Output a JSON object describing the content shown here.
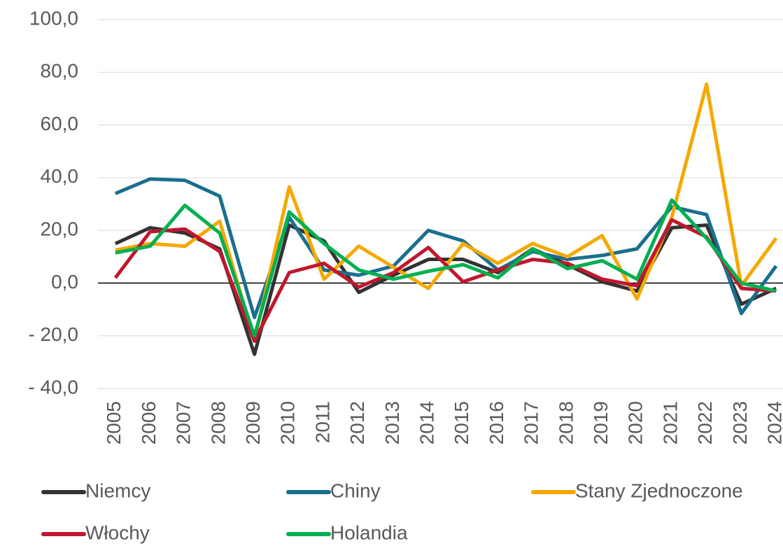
{
  "chart_data": {
    "type": "line",
    "categories": [
      "2005",
      "2006",
      "2007",
      "2008",
      "2009",
      "2010",
      "2011",
      "2012",
      "2013",
      "2014",
      "2015",
      "2016",
      "2017",
      "2018",
      "2019",
      "2020",
      "2021",
      "2022",
      "2023",
      "2024"
    ],
    "series": [
      {
        "name": "Niemcy",
        "color": "#333333",
        "values": [
          15,
          21,
          19,
          13,
          -27,
          22,
          16,
          -3.5,
          3,
          9,
          9,
          4,
          13,
          7,
          0.5,
          -3,
          21,
          22,
          -8,
          -2
        ]
      },
      {
        "name": "Chiny",
        "color": "#1a6e8e",
        "values": [
          34,
          39.5,
          39,
          33,
          -13,
          25,
          5,
          3,
          6.5,
          20,
          16,
          5,
          12,
          9,
          10.5,
          13,
          29,
          26,
          -11.5,
          6.5
        ]
      },
      {
        "name": "Stany Zjednoczone",
        "color": "#f5a800",
        "values": [
          12.5,
          15,
          14,
          23.5,
          -22,
          36.5,
          1.5,
          14,
          6,
          -2,
          15,
          7.5,
          15,
          10,
          18,
          -6,
          25,
          75.5,
          -1,
          17
        ]
      },
      {
        "name": "Włochy",
        "color": "#c0172e",
        "values": [
          2,
          19.5,
          20.5,
          12,
          -22,
          4,
          7.5,
          -1.5,
          4,
          13.5,
          0.5,
          5,
          9,
          7.5,
          1.5,
          -1,
          24,
          17.5,
          -2,
          -3
        ]
      },
      {
        "name": "Holandia",
        "color": "#00b050",
        "values": [
          11.5,
          14,
          29.5,
          19,
          -20,
          27,
          15,
          5,
          1.5,
          4.5,
          7,
          2,
          13,
          5.5,
          8.5,
          1.5,
          31.5,
          17,
          0,
          -3
        ]
      }
    ],
    "ylim": [
      -40,
      100
    ],
    "yticks": [
      {
        "value": -40,
        "label": "- 40,0"
      },
      {
        "value": -20,
        "label": "- 20,0"
      },
      {
        "value": 0,
        "label": "0,0"
      },
      {
        "value": 20,
        "label": "20,0"
      },
      {
        "value": 40,
        "label": "40,0"
      },
      {
        "value": 60,
        "label": "60,0"
      },
      {
        "value": 80,
        "label": "80,0"
      },
      {
        "value": 100,
        "label": "100,0"
      }
    ],
    "grid": true,
    "legend": "bottom"
  }
}
